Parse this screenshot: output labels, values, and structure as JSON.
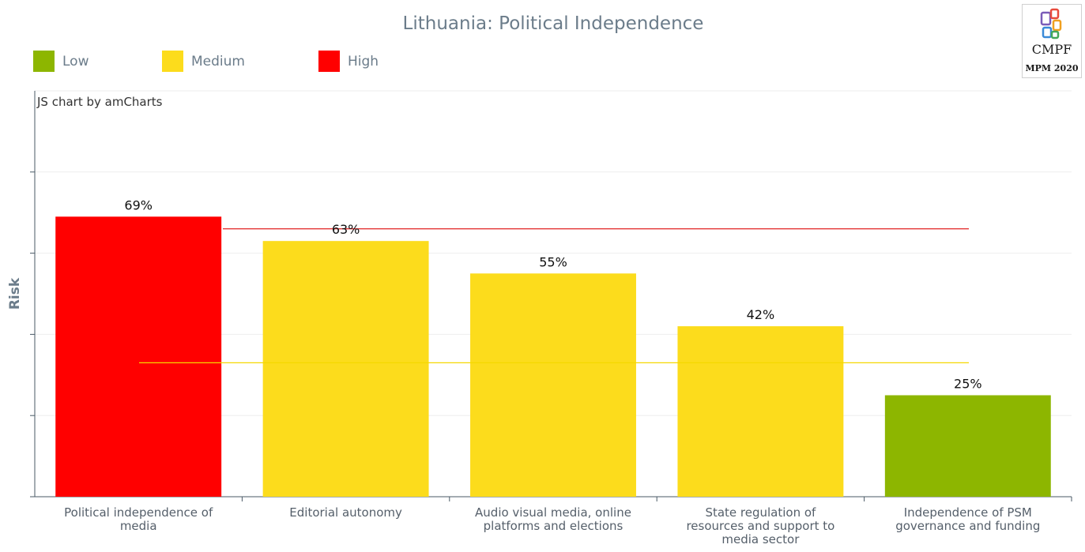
{
  "chart_data": {
    "type": "bar",
    "title": "Lithuania: Political Independence",
    "ylabel": "Risk",
    "xlabel": "",
    "ylim": [
      0,
      100
    ],
    "categories": [
      "Political independence of media",
      "Editorial autonomy",
      "Audio visual media, online platforms and elections",
      "State regulation of resources and support to media sector",
      "Independence of PSM governance and funding"
    ],
    "values": [
      69,
      63,
      55,
      42,
      25
    ],
    "value_labels": [
      "69%",
      "63%",
      "55%",
      "42%",
      "25%"
    ],
    "risk_levels": [
      "High",
      "Medium",
      "Medium",
      "Medium",
      "Low"
    ],
    "legend": [
      {
        "label": "Low",
        "color": "#8db600"
      },
      {
        "label": "Medium",
        "color": "#fcdc1c"
      },
      {
        "label": "High",
        "color": "#ff0000"
      }
    ],
    "thresholds": [
      {
        "value": 66,
        "color": "#e02020"
      },
      {
        "value": 33,
        "color": "#f5d800"
      }
    ],
    "grid": true,
    "legend_position": "top-left"
  },
  "credit": "JS chart by amCharts",
  "logo": {
    "name": "CMPF",
    "subtitle": "MPM 2020"
  }
}
